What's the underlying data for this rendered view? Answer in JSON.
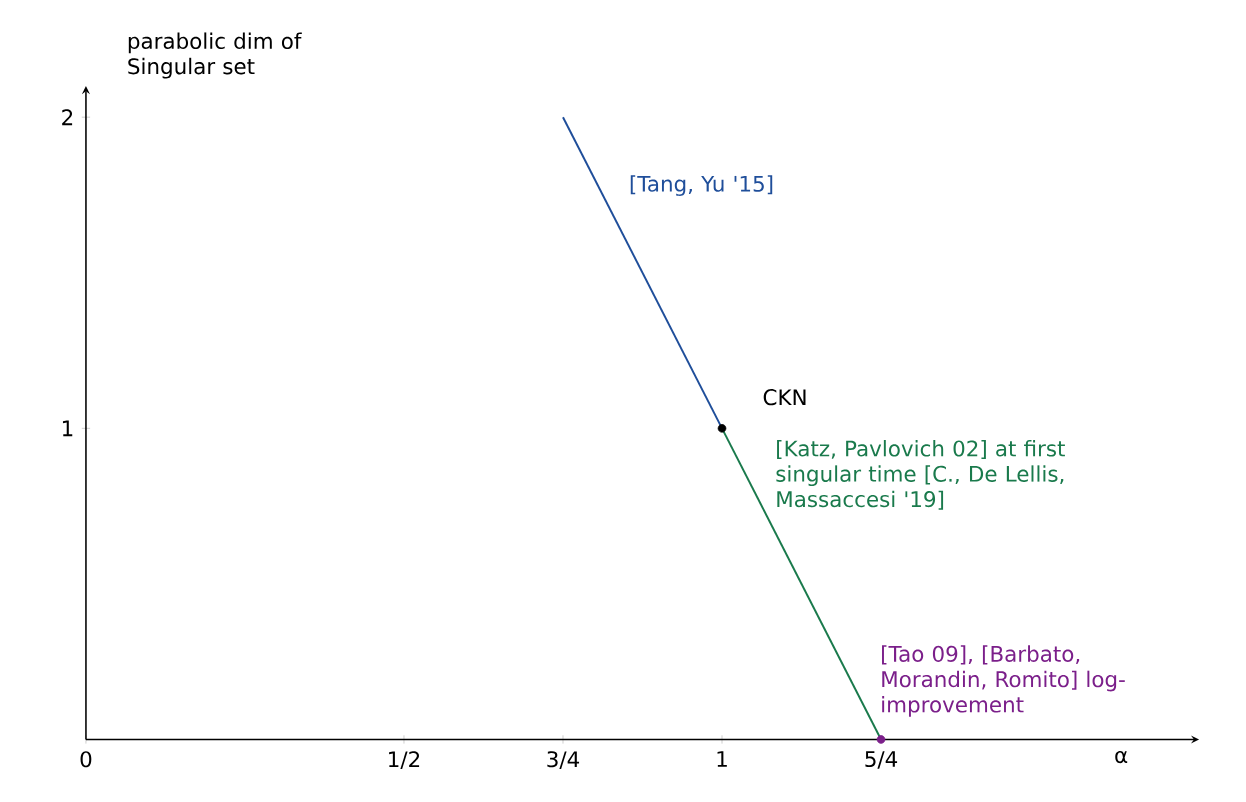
{
  "chart_data": {
    "type": "line",
    "xlabel": "α",
    "ylabel": "parabolic dim of Singular set",
    "xlim": [
      0,
      1.75
    ],
    "ylim": [
      0,
      2.1
    ],
    "xticks": [
      0,
      {
        "value": 0.5,
        "label": "1/2"
      },
      {
        "value": 0.75,
        "label": "3/4"
      },
      1,
      {
        "value": 1.25,
        "label": "5/4"
      }
    ],
    "yticks": [
      1,
      2
    ],
    "series": [
      {
        "name": "[Tang, Yu '15]",
        "color": "#1f4e9a",
        "x": [
          0.75,
          1
        ],
        "values": [
          2,
          1
        ]
      },
      {
        "name": "CKN",
        "color": "#000000",
        "type": "scatter",
        "x": [
          1
        ],
        "values": [
          1
        ]
      },
      {
        "name": "[Katz, Pavlovich 02] at first singular time [C., De Lellis, Massaccesi '19]",
        "color": "#1a7a4c",
        "x": [
          1,
          1.25
        ],
        "values": [
          1,
          0
        ]
      },
      {
        "name": "[Tao 09], [Barbato, Morandin, Romito] log-improvement",
        "color": "#7b1f8a",
        "type": "scatter",
        "x": [
          1.25
        ],
        "values": [
          0
        ]
      }
    ]
  }
}
